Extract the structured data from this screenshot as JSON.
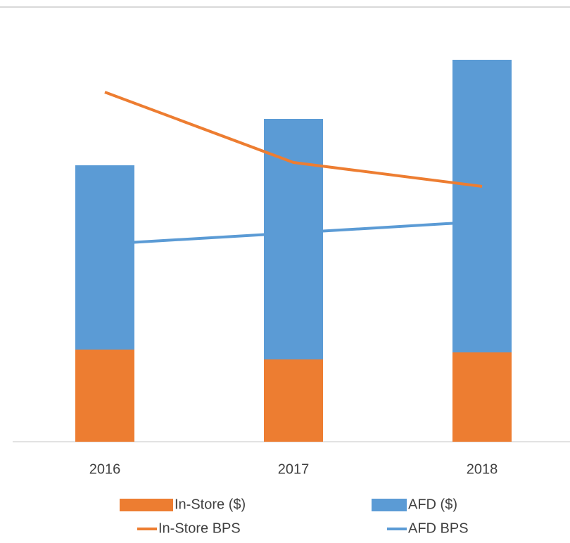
{
  "chart_data": {
    "type": "bar",
    "categories": [
      "2016",
      "2017",
      "2018"
    ],
    "series": [
      {
        "name": "In-Store ($)",
        "type": "bar",
        "color": "#ed7d31",
        "values": [
          131,
          117,
          127
        ]
      },
      {
        "name": "AFD ($)",
        "type": "bar",
        "color": "#5b9bd5",
        "values": [
          262,
          342,
          416
        ]
      },
      {
        "name": "In-Store BPS",
        "type": "line",
        "color": "#ed7d31",
        "values": [
          497,
          397,
          363
        ]
      },
      {
        "name": "AFD BPS",
        "type": "line",
        "color": "#5b9bd5",
        "values": [
          281,
          297,
          313
        ]
      }
    ],
    "stacked": true,
    "ylim": [
      0,
      600
    ],
    "legend": "bottom"
  }
}
